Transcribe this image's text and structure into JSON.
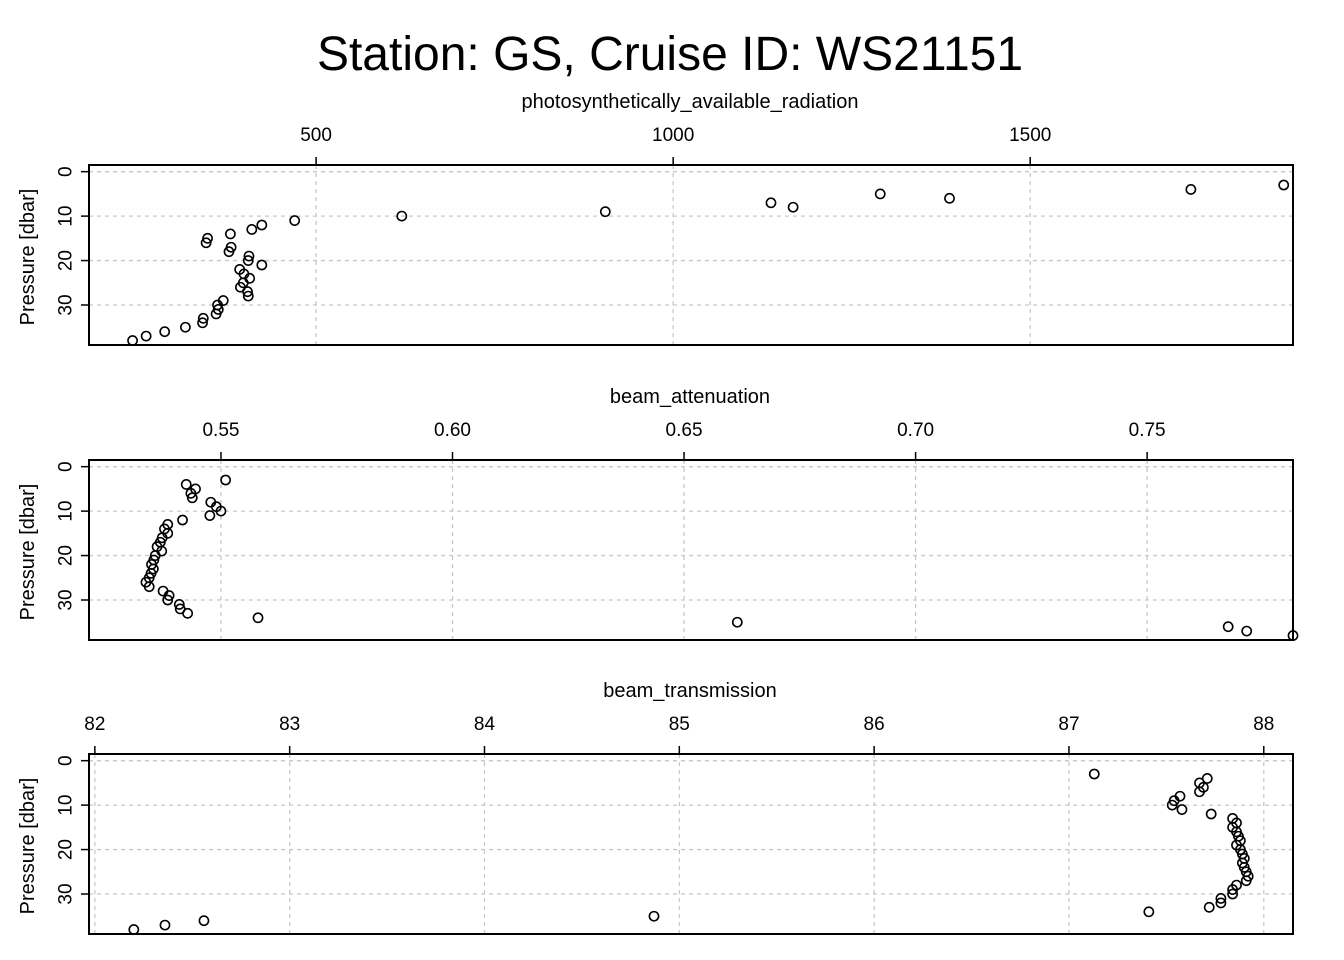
{
  "title": "Station: GS, Cruise ID: WS21151",
  "chart_data": [
    {
      "type": "scatter",
      "xlabel": "photosynthetically_available_radiation",
      "ylabel": "Pressure [dbar]",
      "xlim": [
        182,
        1868
      ],
      "ylim": [
        39,
        -1.5
      ],
      "xticks": [
        500,
        1000,
        1500
      ],
      "xtick_labels": [
        "500",
        "1000",
        "1500"
      ],
      "yticks": [
        0,
        10,
        20,
        30
      ],
      "ytick_labels": [
        "0",
        "10",
        "20",
        "30"
      ],
      "grid": true,
      "points": [
        {
          "x": 1855,
          "y": 3
        },
        {
          "x": 1725,
          "y": 4
        },
        {
          "x": 1290,
          "y": 5
        },
        {
          "x": 1387,
          "y": 6
        },
        {
          "x": 1137,
          "y": 7
        },
        {
          "x": 1168,
          "y": 8
        },
        {
          "x": 905,
          "y": 9
        },
        {
          "x": 620,
          "y": 10
        },
        {
          "x": 470,
          "y": 11
        },
        {
          "x": 424,
          "y": 12
        },
        {
          "x": 410,
          "y": 13
        },
        {
          "x": 380,
          "y": 14
        },
        {
          "x": 348,
          "y": 15
        },
        {
          "x": 346,
          "y": 16
        },
        {
          "x": 381,
          "y": 17
        },
        {
          "x": 378,
          "y": 18
        },
        {
          "x": 406,
          "y": 19
        },
        {
          "x": 405,
          "y": 20
        },
        {
          "x": 424,
          "y": 21
        },
        {
          "x": 393,
          "y": 22
        },
        {
          "x": 399,
          "y": 23
        },
        {
          "x": 407,
          "y": 24
        },
        {
          "x": 398,
          "y": 25
        },
        {
          "x": 394,
          "y": 26
        },
        {
          "x": 404,
          "y": 27
        },
        {
          "x": 405,
          "y": 28
        },
        {
          "x": 370,
          "y": 29
        },
        {
          "x": 362,
          "y": 30
        },
        {
          "x": 363,
          "y": 31
        },
        {
          "x": 360,
          "y": 32
        },
        {
          "x": 342,
          "y": 33
        },
        {
          "x": 341,
          "y": 34
        },
        {
          "x": 317,
          "y": 35
        },
        {
          "x": 288,
          "y": 36
        },
        {
          "x": 262,
          "y": 37
        },
        {
          "x": 243,
          "y": 38
        }
      ]
    },
    {
      "type": "scatter",
      "xlabel": "beam_attenuation",
      "ylabel": "Pressure [dbar]",
      "xlim": [
        0.5215,
        0.7815
      ],
      "ylim": [
        39,
        -1.5
      ],
      "xticks": [
        0.55,
        0.6,
        0.65,
        0.7,
        0.75
      ],
      "xtick_labels": [
        "0.55",
        "0.60",
        "0.65",
        "0.70",
        "0.75"
      ],
      "yticks": [
        0,
        10,
        20,
        30
      ],
      "ytick_labels": [
        "0",
        "10",
        "20",
        "30"
      ],
      "grid": true,
      "points": [
        {
          "x": 0.551,
          "y": 3
        },
        {
          "x": 0.5425,
          "y": 4
        },
        {
          "x": 0.5445,
          "y": 5
        },
        {
          "x": 0.5435,
          "y": 6
        },
        {
          "x": 0.5438,
          "y": 7
        },
        {
          "x": 0.5478,
          "y": 8
        },
        {
          "x": 0.549,
          "y": 9
        },
        {
          "x": 0.55,
          "y": 10
        },
        {
          "x": 0.5476,
          "y": 11
        },
        {
          "x": 0.5417,
          "y": 12
        },
        {
          "x": 0.5385,
          "y": 13
        },
        {
          "x": 0.5378,
          "y": 14
        },
        {
          "x": 0.5385,
          "y": 15
        },
        {
          "x": 0.5373,
          "y": 16
        },
        {
          "x": 0.5369,
          "y": 17
        },
        {
          "x": 0.5362,
          "y": 18
        },
        {
          "x": 0.5372,
          "y": 19
        },
        {
          "x": 0.5358,
          "y": 20
        },
        {
          "x": 0.5355,
          "y": 21
        },
        {
          "x": 0.535,
          "y": 22
        },
        {
          "x": 0.5354,
          "y": 23
        },
        {
          "x": 0.5349,
          "y": 24
        },
        {
          "x": 0.5345,
          "y": 25
        },
        {
          "x": 0.5338,
          "y": 26
        },
        {
          "x": 0.5345,
          "y": 27
        },
        {
          "x": 0.5375,
          "y": 28
        },
        {
          "x": 0.5388,
          "y": 29
        },
        {
          "x": 0.5385,
          "y": 30
        },
        {
          "x": 0.541,
          "y": 31
        },
        {
          "x": 0.5412,
          "y": 32
        },
        {
          "x": 0.5428,
          "y": 33
        },
        {
          "x": 0.558,
          "y": 34
        },
        {
          "x": 0.6615,
          "y": 35
        },
        {
          "x": 0.7675,
          "y": 36
        },
        {
          "x": 0.7715,
          "y": 37
        },
        {
          "x": 0.7815,
          "y": 38
        }
      ]
    },
    {
      "type": "scatter",
      "xlabel": "beam_transmission",
      "ylabel": "Pressure [dbar]",
      "xlim": [
        81.97,
        88.15
      ],
      "ylim": [
        39,
        -1.5
      ],
      "xticks": [
        82,
        83,
        84,
        85,
        86,
        87,
        88
      ],
      "xtick_labels": [
        "82",
        "83",
        "84",
        "85",
        "86",
        "87",
        "88"
      ],
      "yticks": [
        0,
        10,
        20,
        30
      ],
      "ytick_labels": [
        "0",
        "10",
        "20",
        "30"
      ],
      "grid": true,
      "points": [
        {
          "x": 87.13,
          "y": 3
        },
        {
          "x": 87.71,
          "y": 4
        },
        {
          "x": 87.67,
          "y": 5
        },
        {
          "x": 87.69,
          "y": 6
        },
        {
          "x": 87.67,
          "y": 7
        },
        {
          "x": 87.57,
          "y": 8
        },
        {
          "x": 87.54,
          "y": 9
        },
        {
          "x": 87.53,
          "y": 10
        },
        {
          "x": 87.58,
          "y": 11
        },
        {
          "x": 87.73,
          "y": 12
        },
        {
          "x": 87.84,
          "y": 13
        },
        {
          "x": 87.86,
          "y": 14
        },
        {
          "x": 87.84,
          "y": 15
        },
        {
          "x": 87.86,
          "y": 16
        },
        {
          "x": 87.87,
          "y": 17
        },
        {
          "x": 87.88,
          "y": 18
        },
        {
          "x": 87.86,
          "y": 19
        },
        {
          "x": 87.88,
          "y": 20
        },
        {
          "x": 87.89,
          "y": 21
        },
        {
          "x": 87.9,
          "y": 22
        },
        {
          "x": 87.89,
          "y": 23
        },
        {
          "x": 87.9,
          "y": 24
        },
        {
          "x": 87.91,
          "y": 25
        },
        {
          "x": 87.92,
          "y": 26
        },
        {
          "x": 87.91,
          "y": 27
        },
        {
          "x": 87.86,
          "y": 28
        },
        {
          "x": 87.84,
          "y": 29
        },
        {
          "x": 87.84,
          "y": 30
        },
        {
          "x": 87.78,
          "y": 31
        },
        {
          "x": 87.78,
          "y": 32
        },
        {
          "x": 87.72,
          "y": 33
        },
        {
          "x": 87.41,
          "y": 34
        },
        {
          "x": 84.87,
          "y": 35
        },
        {
          "x": 82.56,
          "y": 36
        },
        {
          "x": 82.36,
          "y": 37
        },
        {
          "x": 82.2,
          "y": 38
        }
      ]
    }
  ]
}
